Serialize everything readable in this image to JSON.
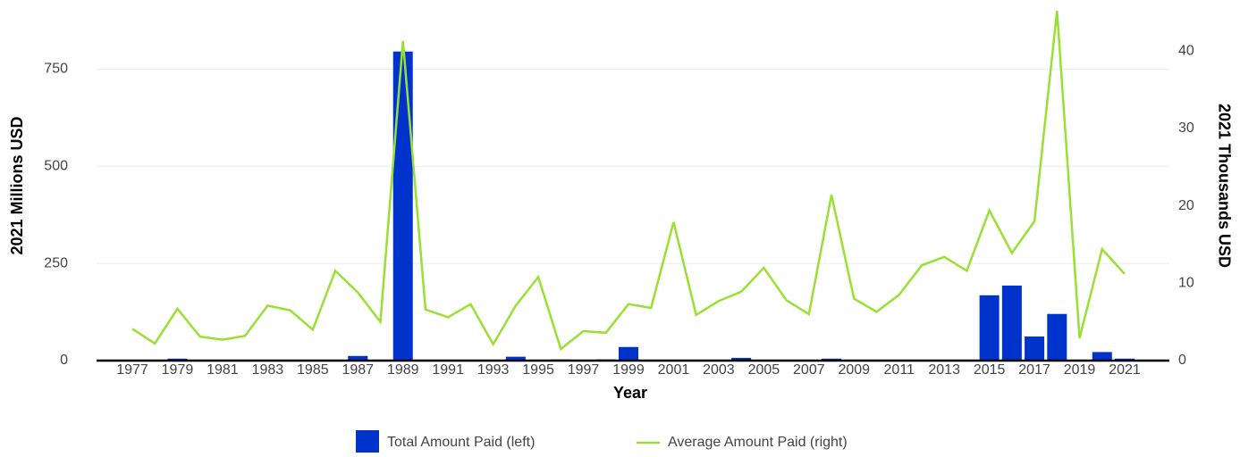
{
  "chart_data": {
    "type": "bar-line",
    "x_label": "Year",
    "y_label": "2021 Millions USD",
    "y2_label": "2021 Thousands USD",
    "categories": [
      "1977",
      null,
      "1979",
      null,
      "1981",
      null,
      "1983",
      null,
      "1985",
      null,
      "1987",
      null,
      "1989",
      null,
      "1991",
      null,
      "1993",
      null,
      "1995",
      null,
      "1997",
      null,
      "1999",
      null,
      "2001",
      null,
      "2003",
      null,
      "2005",
      null,
      "2007",
      null,
      "2009",
      null,
      "2011",
      null,
      "2013",
      null,
      "2015",
      null,
      "2017",
      null,
      "2019",
      null,
      "2021"
    ],
    "series": [
      {
        "name": "Total Amount Paid (left)",
        "color": "#0033cc",
        "type": "bar",
        "values": [
          0,
          0,
          5,
          0,
          0,
          0,
          0,
          0,
          0,
          0,
          12,
          0,
          795,
          0,
          0,
          0,
          0,
          10,
          0,
          3,
          0,
          3,
          35,
          0,
          0,
          0,
          0,
          7,
          0,
          0,
          0,
          5,
          0,
          0,
          0,
          0,
          0,
          0,
          168,
          193,
          62,
          120,
          0,
          22,
          5
        ]
      },
      {
        "name": "Average Amount Paid (right)",
        "color": "#99e033",
        "type": "line",
        "axis": "y2",
        "values": [
          4.1,
          2.2,
          6.7,
          3.1,
          2.7,
          3.2,
          7.1,
          6.5,
          4.0,
          11.6,
          8.8,
          5.0,
          41.3,
          6.6,
          5.6,
          7.3,
          2.1,
          7.1,
          10.8,
          1.5,
          3.8,
          3.6,
          7.3,
          6.8,
          17.9,
          5.9,
          7.7,
          8.9,
          12.0,
          7.8,
          6.0,
          21.4,
          8.0,
          6.3,
          8.5,
          12.3,
          13.4,
          11.6,
          19.4,
          13.9,
          18.0,
          45.2,
          2.9,
          14.4,
          11.2
        ]
      }
    ],
    "ylim": [
      0,
      900
    ],
    "yticks": [
      0,
      250,
      500,
      750
    ],
    "y2lim": [
      0,
      45.2
    ],
    "y2ticks": [
      0,
      10,
      20,
      30,
      40
    ],
    "grid": true,
    "legend": "bottom"
  }
}
